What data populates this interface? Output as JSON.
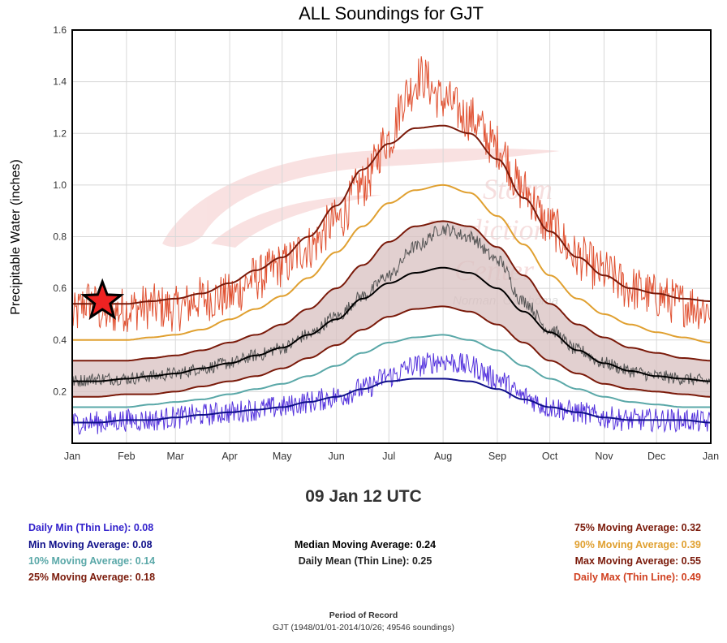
{
  "chart_data": {
    "type": "line",
    "title": "ALL Soundings for GJT",
    "ylabel": "Precipitable Water (inches)",
    "xlabel": "",
    "ylim": [
      0.0,
      1.6
    ],
    "yticks": [
      0.2,
      0.4,
      0.6,
      0.8,
      1.0,
      1.2,
      1.4,
      1.6
    ],
    "x_domain": [
      "Jan 1",
      "Dec 31"
    ],
    "x_tick_labels": [
      "Jan",
      "Feb",
      "Mar",
      "Apr",
      "May",
      "Jun",
      "Jul",
      "Aug",
      "Sep",
      "Oct",
      "Nov",
      "Dec",
      "Jan"
    ],
    "x_tick_days": [
      1,
      32,
      60,
      91,
      121,
      152,
      182,
      213,
      244,
      274,
      305,
      335,
      366
    ],
    "watermark": [
      "Storm",
      "Prediction",
      "Center",
      "Norman, Oklahoma"
    ],
    "shaded_band": {
      "between": [
        "25% Moving Average",
        "75% Moving Average"
      ],
      "color": "#d8c0c0"
    },
    "series": [
      {
        "name": "Max Moving Average",
        "style": "smooth",
        "color": "#7a1a0a",
        "x": [
          1,
          15,
          32,
          46,
          60,
          75,
          91,
          106,
          121,
          136,
          152,
          167,
          182,
          197,
          213,
          228,
          244,
          259,
          274,
          290,
          305,
          320,
          335,
          350,
          366
        ],
        "values": [
          0.54,
          0.54,
          0.54,
          0.55,
          0.56,
          0.58,
          0.62,
          0.67,
          0.72,
          0.8,
          0.92,
          1.06,
          1.16,
          1.22,
          1.23,
          1.2,
          1.1,
          0.95,
          0.82,
          0.72,
          0.65,
          0.6,
          0.58,
          0.56,
          0.55
        ]
      },
      {
        "name": "90% Moving Average",
        "style": "smooth",
        "color": "#e0a030",
        "x": [
          1,
          15,
          32,
          46,
          60,
          75,
          91,
          106,
          121,
          136,
          152,
          167,
          182,
          197,
          213,
          228,
          244,
          259,
          274,
          290,
          305,
          320,
          335,
          350,
          366
        ],
        "values": [
          0.4,
          0.4,
          0.4,
          0.41,
          0.42,
          0.44,
          0.48,
          0.52,
          0.57,
          0.64,
          0.74,
          0.84,
          0.93,
          0.98,
          1.0,
          0.97,
          0.88,
          0.77,
          0.65,
          0.56,
          0.5,
          0.46,
          0.43,
          0.41,
          0.39
        ]
      },
      {
        "name": "75% Moving Average",
        "style": "smooth",
        "color": "#7a1a0a",
        "x": [
          1,
          15,
          32,
          46,
          60,
          75,
          91,
          106,
          121,
          136,
          152,
          167,
          182,
          197,
          213,
          228,
          244,
          259,
          274,
          290,
          305,
          320,
          335,
          350,
          366
        ],
        "values": [
          0.32,
          0.32,
          0.32,
          0.33,
          0.34,
          0.36,
          0.39,
          0.42,
          0.46,
          0.52,
          0.6,
          0.69,
          0.78,
          0.84,
          0.86,
          0.84,
          0.76,
          0.65,
          0.54,
          0.46,
          0.41,
          0.37,
          0.35,
          0.33,
          0.32
        ]
      },
      {
        "name": "Median Moving Average",
        "style": "smooth",
        "color": "#000000",
        "x": [
          1,
          15,
          32,
          46,
          60,
          75,
          91,
          106,
          121,
          136,
          152,
          167,
          182,
          197,
          213,
          228,
          244,
          259,
          274,
          290,
          305,
          320,
          335,
          350,
          366
        ],
        "values": [
          0.24,
          0.24,
          0.25,
          0.26,
          0.27,
          0.29,
          0.31,
          0.34,
          0.37,
          0.42,
          0.48,
          0.56,
          0.62,
          0.66,
          0.68,
          0.66,
          0.6,
          0.51,
          0.43,
          0.36,
          0.31,
          0.28,
          0.26,
          0.25,
          0.24
        ]
      },
      {
        "name": "25% Moving Average",
        "style": "smooth",
        "color": "#7a1a0a",
        "x": [
          1,
          15,
          32,
          46,
          60,
          75,
          91,
          106,
          121,
          136,
          152,
          167,
          182,
          197,
          213,
          228,
          244,
          259,
          274,
          290,
          305,
          320,
          335,
          350,
          366
        ],
        "values": [
          0.18,
          0.18,
          0.19,
          0.19,
          0.2,
          0.22,
          0.24,
          0.26,
          0.29,
          0.33,
          0.38,
          0.44,
          0.49,
          0.52,
          0.53,
          0.51,
          0.46,
          0.39,
          0.32,
          0.27,
          0.23,
          0.21,
          0.2,
          0.19,
          0.18
        ]
      },
      {
        "name": "10% Moving Average",
        "style": "smooth",
        "color": "#5aa8a8",
        "x": [
          1,
          15,
          32,
          46,
          60,
          75,
          91,
          106,
          121,
          136,
          152,
          167,
          182,
          197,
          213,
          228,
          244,
          259,
          274,
          290,
          305,
          320,
          335,
          350,
          366
        ],
        "values": [
          0.14,
          0.14,
          0.14,
          0.15,
          0.16,
          0.17,
          0.19,
          0.21,
          0.23,
          0.26,
          0.3,
          0.35,
          0.39,
          0.41,
          0.42,
          0.4,
          0.36,
          0.3,
          0.25,
          0.21,
          0.18,
          0.16,
          0.15,
          0.14,
          0.14
        ]
      },
      {
        "name": "Min Moving Average",
        "style": "smooth",
        "color": "#10108a",
        "x": [
          1,
          15,
          32,
          46,
          60,
          75,
          91,
          106,
          121,
          136,
          152,
          167,
          182,
          197,
          213,
          228,
          244,
          259,
          274,
          290,
          305,
          320,
          335,
          350,
          366
        ],
        "values": [
          0.08,
          0.08,
          0.09,
          0.09,
          0.1,
          0.11,
          0.12,
          0.13,
          0.14,
          0.16,
          0.18,
          0.21,
          0.24,
          0.25,
          0.25,
          0.24,
          0.21,
          0.17,
          0.14,
          0.12,
          0.1,
          0.09,
          0.09,
          0.09,
          0.08
        ]
      },
      {
        "name": "Daily Max (Thin Line)",
        "style": "noisy",
        "color": "#e05030",
        "x": [
          1,
          10,
          20,
          32,
          46,
          60,
          75,
          91,
          106,
          121,
          136,
          152,
          167,
          182,
          192,
          200,
          213,
          228,
          244,
          259,
          274,
          290,
          305,
          320,
          335,
          350,
          366
        ],
        "values": [
          0.49,
          0.55,
          0.5,
          0.52,
          0.53,
          0.52,
          0.56,
          0.57,
          0.64,
          0.69,
          0.76,
          0.86,
          1.0,
          1.18,
          1.35,
          1.42,
          1.33,
          1.26,
          1.15,
          0.98,
          0.84,
          0.72,
          0.66,
          0.6,
          0.57,
          0.54,
          0.52
        ],
        "noise": 0.09
      },
      {
        "name": "Daily Mean (Thin Line)",
        "style": "noisy",
        "color": "#555555",
        "x": [
          1,
          15,
          32,
          46,
          60,
          75,
          91,
          106,
          121,
          136,
          152,
          167,
          182,
          197,
          213,
          228,
          244,
          259,
          274,
          290,
          305,
          320,
          335,
          350,
          366
        ],
        "values": [
          0.24,
          0.25,
          0.25,
          0.26,
          0.27,
          0.29,
          0.31,
          0.34,
          0.37,
          0.42,
          0.49,
          0.57,
          0.65,
          0.76,
          0.83,
          0.8,
          0.71,
          0.55,
          0.44,
          0.36,
          0.31,
          0.28,
          0.26,
          0.25,
          0.24
        ],
        "noise": 0.025
      },
      {
        "name": "Daily Min (Thin Line)",
        "style": "noisy",
        "color": "#5533dd",
        "x": [
          1,
          15,
          32,
          46,
          60,
          75,
          91,
          106,
          121,
          136,
          152,
          167,
          182,
          197,
          213,
          228,
          244,
          259,
          274,
          290,
          305,
          320,
          335,
          350,
          366
        ],
        "values": [
          0.08,
          0.08,
          0.09,
          0.09,
          0.1,
          0.11,
          0.12,
          0.13,
          0.14,
          0.16,
          0.18,
          0.21,
          0.26,
          0.3,
          0.32,
          0.3,
          0.25,
          0.18,
          0.14,
          0.12,
          0.1,
          0.09,
          0.09,
          0.09,
          0.08
        ],
        "noise": 0.045
      }
    ],
    "marker": {
      "shape": "star",
      "color": "#ee2222",
      "outline": "#000000",
      "x_day": 9,
      "y": 0.55
    }
  },
  "valid_time": "09 Jan 12 UTC",
  "stats": {
    "daily_min": "Daily Min (Thin Line): 0.08",
    "min_ma": "Min Moving Average: 0.08",
    "p10_ma": "10% Moving Average: 0.14",
    "p25_ma": "25% Moving Average: 0.18",
    "median_ma": "Median Moving Average: 0.24",
    "daily_mean": "Daily Mean (Thin Line): 0.25",
    "p75_ma": "75% Moving Average: 0.32",
    "p90_ma": "90% Moving Average: 0.39",
    "max_ma": "Max Moving Average: 0.55",
    "daily_max": "Daily Max (Thin Line): 0.49"
  },
  "stat_colors": {
    "daily_min": "#3322cc",
    "min_ma": "#10108a",
    "p10_ma": "#5aa8a8",
    "p25_ma": "#7a1a0a",
    "median_ma": "#000000",
    "daily_mean": "#222222",
    "p75_ma": "#7a1a0a",
    "p90_ma": "#e0a030",
    "max_ma": "#7a1a0a",
    "daily_max": "#d04020"
  },
  "footer": {
    "title": "Period of Record",
    "detail": "GJT (1948/01/01-2014/10/26; 49546 soundings)"
  }
}
